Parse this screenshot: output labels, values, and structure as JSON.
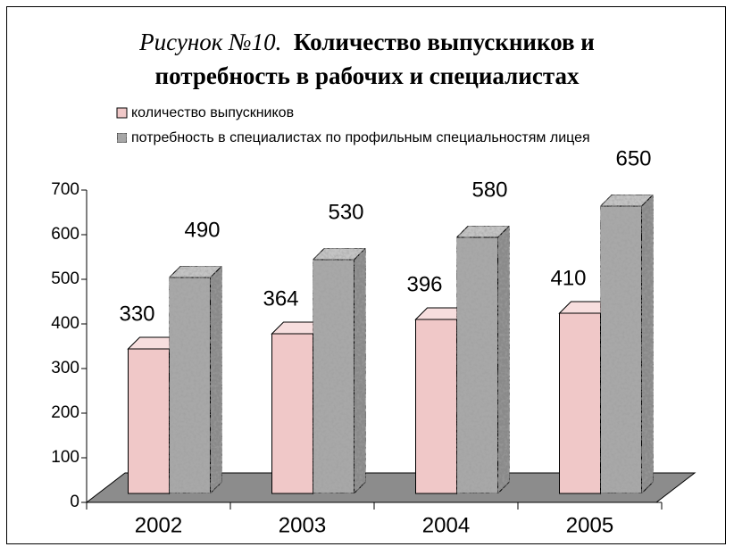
{
  "chart_data": {
    "type": "bar3d",
    "figure_label": "Рисунок №10.",
    "title": "Количество выпускников и потребность в рабочих и специалистах",
    "categories": [
      "2002",
      "2003",
      "2004",
      "2005"
    ],
    "series": [
      {
        "name": "количество выпускников",
        "color": "#f0c8c8",
        "values": [
          330,
          364,
          396,
          410
        ]
      },
      {
        "name": "потребность в специалистах по профильным специальностям лицея",
        "color": "#a8a8a8",
        "values": [
          490,
          530,
          580,
          650
        ]
      }
    ],
    "ylim": [
      0,
      700
    ],
    "yticks": [
      0,
      100,
      200,
      300,
      400,
      500,
      600,
      700
    ],
    "legend": "top-left"
  }
}
